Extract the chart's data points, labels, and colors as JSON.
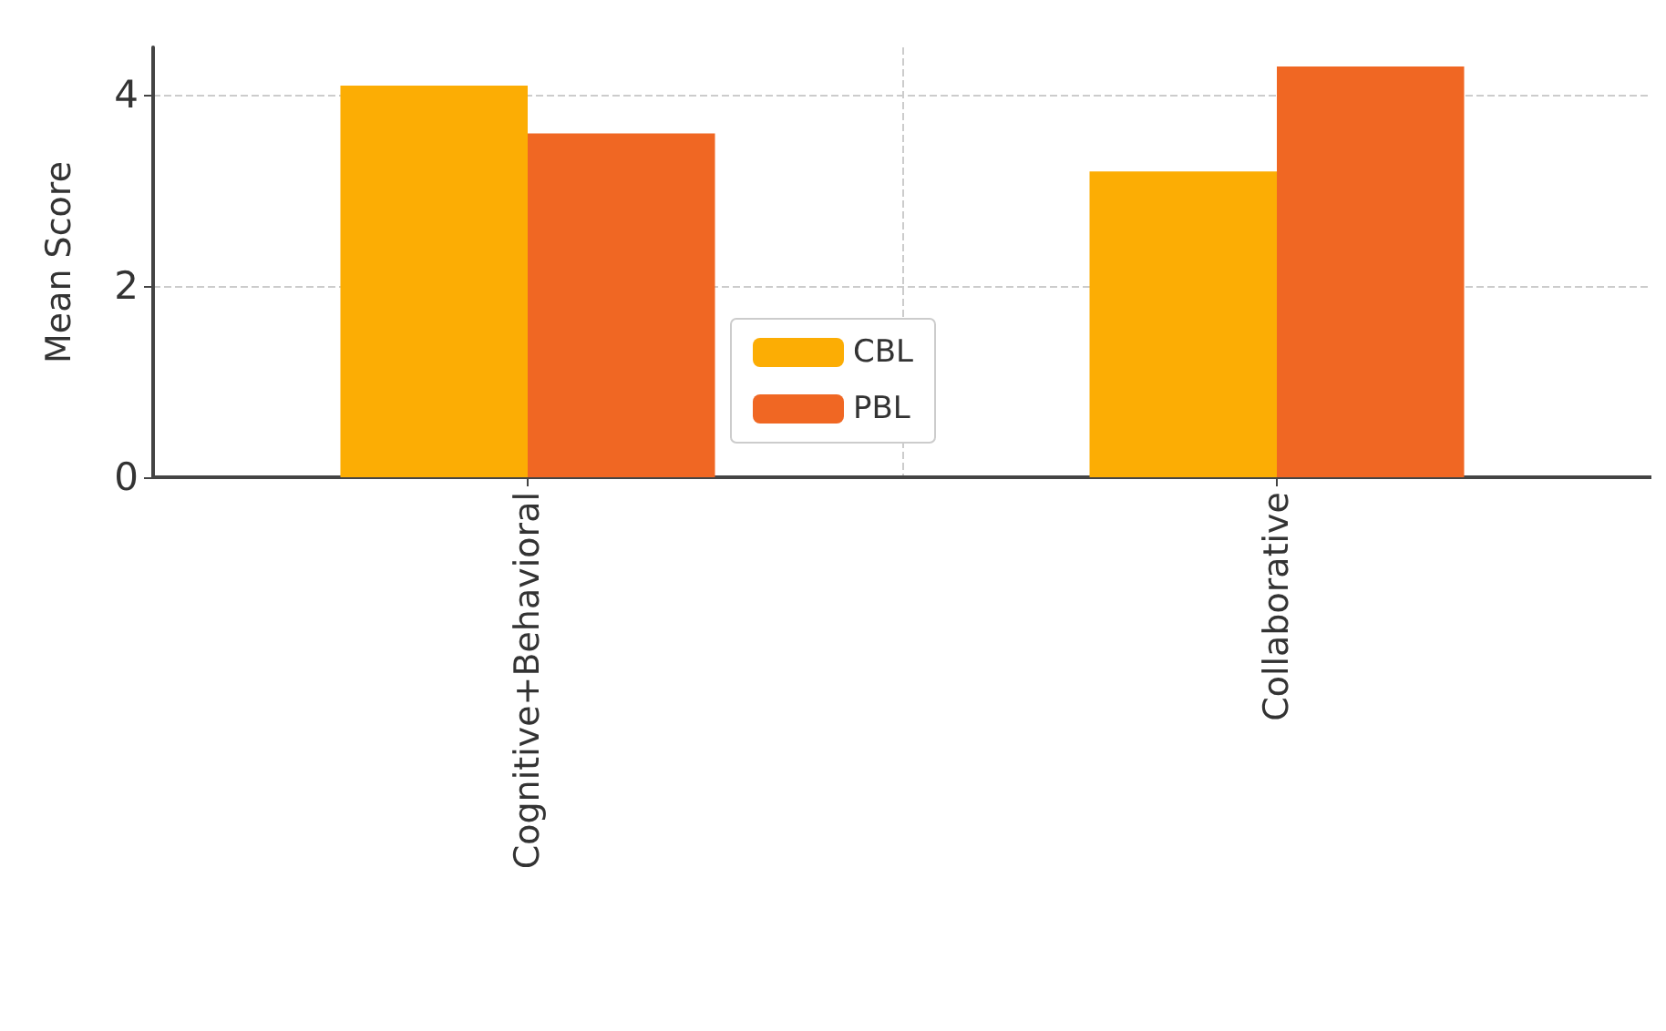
{
  "chart_data": {
    "type": "bar",
    "ylabel": "Mean Score",
    "categories": [
      "Cognitive+Behavioral",
      "Collaborative"
    ],
    "series": [
      {
        "name": "CBL",
        "color": "#fcad04",
        "values": [
          4.1,
          3.2
        ]
      },
      {
        "name": "PBL",
        "color": "#f06723",
        "values": [
          3.6,
          4.3
        ]
      }
    ],
    "ylim": [
      0,
      4.5
    ],
    "yticks": [
      0,
      2,
      4
    ],
    "grid": true,
    "legend": "bottom"
  }
}
